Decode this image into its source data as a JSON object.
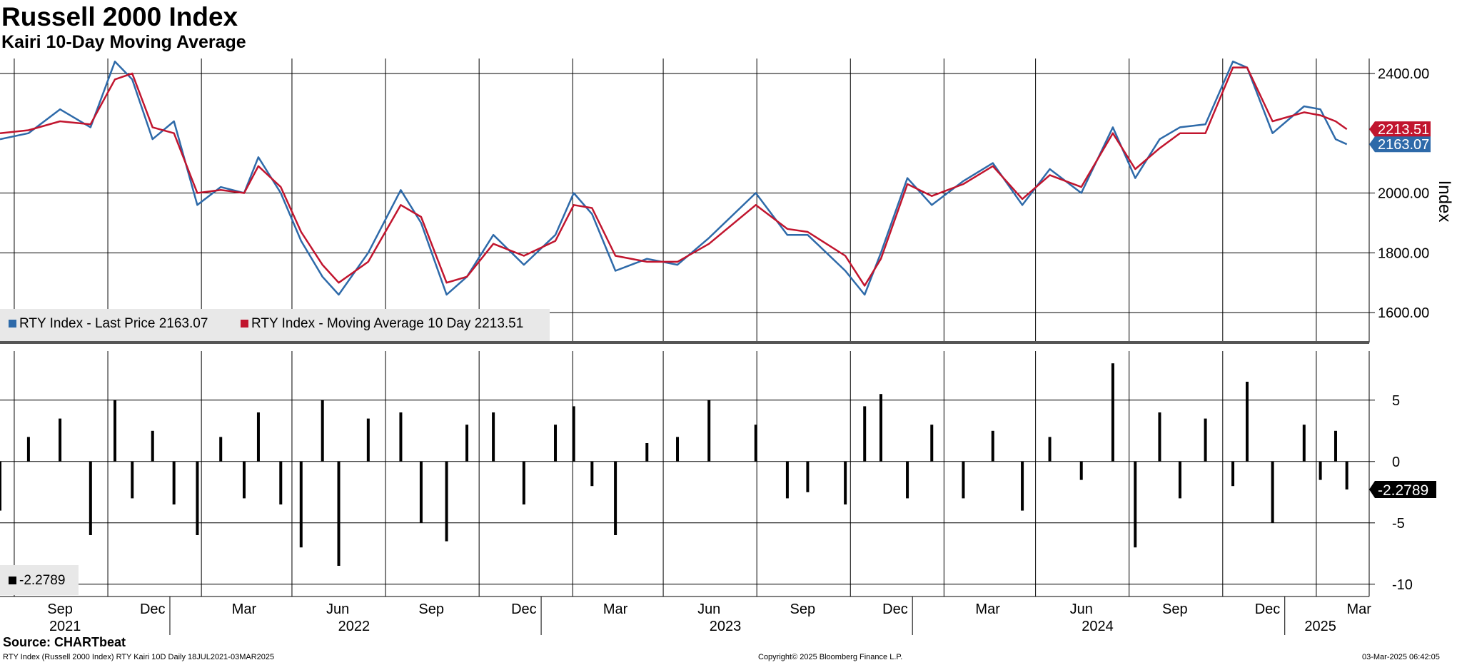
{
  "title": "Russell 2000 Index",
  "subtitle": "Kairi 10-Day Moving Average",
  "source": "Source: CHARTbeat",
  "footer": {
    "left": "RTY Index (Russell 2000 Index) RTY Kairi 10D  Daily 18JUL2021-03MAR2025",
    "center": "Copyright© 2025 Bloomberg Finance L.P.",
    "right": "03-Mar-2025 06:42:05"
  },
  "legend_top": [
    {
      "label": "RTY Index - Last Price 2163.07",
      "color": "#2e6aa9"
    },
    {
      "label": "RTY Index - Moving Average 10 Day 2213.51",
      "color": "#c1152e"
    }
  ],
  "legend_bottom": {
    "label": "-2.2789",
    "color": "#000000"
  },
  "chart_data": [
    {
      "type": "line",
      "title": "Russell 2000 Index",
      "ylabel": "Index",
      "ylim": [
        1500,
        2450
      ],
      "yticks": [
        "2400.00",
        "2000.00",
        "1800.00",
        "1600.00"
      ],
      "ytick_values": [
        2400,
        2000,
        1800,
        1600
      ],
      "grid": true,
      "legend": "bottom-left",
      "last_value_labels": [
        {
          "text": "2213.51",
          "value": 2213.51,
          "color": "#c1152e"
        },
        {
          "text": "2163.07",
          "value": 2163.07,
          "color": "#2e6aa9"
        }
      ],
      "x": [
        "2021-07-18",
        "2021-08-15",
        "2021-09-15",
        "2021-10-15",
        "2021-11-08",
        "2021-11-25",
        "2021-12-15",
        "2022-01-05",
        "2022-01-28",
        "2022-02-20",
        "2022-03-15",
        "2022-03-29",
        "2022-04-20",
        "2022-05-10",
        "2022-05-31",
        "2022-06-16",
        "2022-07-15",
        "2022-08-16",
        "2022-09-05",
        "2022-09-30",
        "2022-10-20",
        "2022-11-15",
        "2022-12-15",
        "2023-01-15",
        "2023-02-02",
        "2023-02-20",
        "2023-03-15",
        "2023-04-15",
        "2023-05-15",
        "2023-06-15",
        "2023-07-31",
        "2023-08-31",
        "2023-09-20",
        "2023-10-27",
        "2023-11-15",
        "2023-12-01",
        "2023-12-27",
        "2024-01-20",
        "2024-02-20",
        "2024-03-20",
        "2024-04-18",
        "2024-05-15",
        "2024-06-15",
        "2024-07-16",
        "2024-08-07",
        "2024-08-31",
        "2024-09-20",
        "2024-10-15",
        "2024-11-11",
        "2024-11-25",
        "2024-12-20",
        "2025-01-20",
        "2025-02-05",
        "2025-02-20",
        "2025-03-03"
      ],
      "series": [
        {
          "name": "RTY Index - Last Price 2163.07",
          "color": "#2e6aa9",
          "values": [
            2180,
            2200,
            2280,
            2220,
            2440,
            2380,
            2180,
            2240,
            1960,
            2020,
            2000,
            2120,
            2000,
            1840,
            1720,
            1660,
            1800,
            2010,
            1900,
            1660,
            1720,
            1860,
            1760,
            1860,
            2000,
            1930,
            1740,
            1780,
            1760,
            1850,
            2000,
            1860,
            1860,
            1740,
            1660,
            1800,
            2050,
            1960,
            2040,
            2100,
            1960,
            2080,
            2000,
            2220,
            2050,
            2180,
            2220,
            2230,
            2440,
            2420,
            2200,
            2290,
            2280,
            2180,
            2163.07
          ]
        },
        {
          "name": "RTY Index - Moving Average 10 Day 2213.51",
          "color": "#c1152e",
          "values": [
            2200,
            2210,
            2240,
            2230,
            2380,
            2400,
            2220,
            2200,
            2000,
            2010,
            2000,
            2090,
            2020,
            1870,
            1760,
            1700,
            1770,
            1960,
            1920,
            1700,
            1720,
            1830,
            1790,
            1840,
            1960,
            1950,
            1790,
            1770,
            1770,
            1830,
            1960,
            1880,
            1870,
            1790,
            1690,
            1780,
            2030,
            1990,
            2030,
            2090,
            1980,
            2060,
            2020,
            2200,
            2080,
            2150,
            2200,
            2200,
            2420,
            2420,
            2240,
            2270,
            2260,
            2240,
            2213.51
          ]
        }
      ]
    },
    {
      "type": "bar",
      "title": "RTY Kairi 10D",
      "ylim": [
        -11,
        9
      ],
      "yticks": [
        "5",
        "0",
        "-5",
        "-10"
      ],
      "ytick_values": [
        5,
        0,
        -5,
        -10
      ],
      "grid": true,
      "legend": "bottom-left",
      "last_value_label": {
        "text": "-2.2789",
        "value": -2.2789
      },
      "x": [
        "2021-07-18",
        "2021-08-15",
        "2021-09-15",
        "2021-10-15",
        "2021-11-08",
        "2021-11-25",
        "2021-12-15",
        "2022-01-05",
        "2022-01-28",
        "2022-02-20",
        "2022-03-15",
        "2022-03-29",
        "2022-04-20",
        "2022-05-10",
        "2022-05-31",
        "2022-06-16",
        "2022-07-15",
        "2022-08-16",
        "2022-09-05",
        "2022-09-30",
        "2022-10-20",
        "2022-11-15",
        "2022-12-15",
        "2023-01-15",
        "2023-02-02",
        "2023-02-20",
        "2023-03-15",
        "2023-04-15",
        "2023-05-15",
        "2023-06-15",
        "2023-07-31",
        "2023-08-31",
        "2023-09-20",
        "2023-10-27",
        "2023-11-15",
        "2023-12-01",
        "2023-12-27",
        "2024-01-20",
        "2024-02-20",
        "2024-03-20",
        "2024-04-18",
        "2024-05-15",
        "2024-06-15",
        "2024-07-16",
        "2024-08-07",
        "2024-08-31",
        "2024-09-20",
        "2024-10-15",
        "2024-11-11",
        "2024-11-25",
        "2024-12-20",
        "2025-01-20",
        "2025-02-05",
        "2025-02-20",
        "2025-03-03"
      ],
      "values": [
        -4.0,
        2.0,
        3.5,
        -6.0,
        5.0,
        -3.0,
        2.5,
        -3.5,
        -6.0,
        2.0,
        -3.0,
        4.0,
        -3.5,
        -7.0,
        5.0,
        -8.5,
        3.5,
        4.0,
        -5.0,
        -6.5,
        3.0,
        4.0,
        -3.5,
        3.0,
        4.5,
        -2.0,
        -6.0,
        1.5,
        2.0,
        5.0,
        3.0,
        -3.0,
        -2.5,
        -3.5,
        4.5,
        5.5,
        -3.0,
        3.0,
        -3.0,
        2.5,
        -4.0,
        2.0,
        -1.5,
        8.0,
        -7.0,
        4.0,
        -3.0,
        3.5,
        -2.0,
        6.5,
        -5.0,
        3.0,
        -1.5,
        2.5,
        -2.2789
      ]
    }
  ],
  "x_axis": {
    "month_labels": [
      {
        "label": "Sep",
        "date": "2021-09-15"
      },
      {
        "label": "Dec",
        "date": "2021-12-15"
      },
      {
        "label": "Mar",
        "date": "2022-03-15"
      },
      {
        "label": "Jun",
        "date": "2022-06-15"
      },
      {
        "label": "Sep",
        "date": "2022-09-15"
      },
      {
        "label": "Dec",
        "date": "2022-12-15"
      },
      {
        "label": "Mar",
        "date": "2023-03-15"
      },
      {
        "label": "Jun",
        "date": "2023-06-15"
      },
      {
        "label": "Sep",
        "date": "2023-09-15"
      },
      {
        "label": "Dec",
        "date": "2023-12-15"
      },
      {
        "label": "Mar",
        "date": "2024-03-15"
      },
      {
        "label": "Jun",
        "date": "2024-06-15"
      },
      {
        "label": "Sep",
        "date": "2024-09-15"
      },
      {
        "label": "Dec",
        "date": "2024-12-15"
      },
      {
        "label": "Mar",
        "date": "2025-03-15"
      }
    ],
    "year_labels": [
      {
        "label": "2021",
        "date": "2021-09-20"
      },
      {
        "label": "2022",
        "date": "2022-07-01"
      },
      {
        "label": "2023",
        "date": "2023-07-01"
      },
      {
        "label": "2024",
        "date": "2024-07-01"
      },
      {
        "label": "2025",
        "date": "2025-02-05"
      }
    ],
    "gridline_dates": [
      "2021-08-01",
      "2021-11-01",
      "2022-02-01",
      "2022-05-01",
      "2022-08-01",
      "2022-11-01",
      "2023-02-01",
      "2023-05-01",
      "2023-08-01",
      "2023-11-01",
      "2024-02-01",
      "2024-05-01",
      "2024-08-01",
      "2024-11-01",
      "2025-02-01"
    ],
    "year_separators": [
      "2022-01-01",
      "2023-01-01",
      "2024-01-01",
      "2025-01-01"
    ],
    "start": "2021-07-18",
    "end": "2025-03-25"
  }
}
